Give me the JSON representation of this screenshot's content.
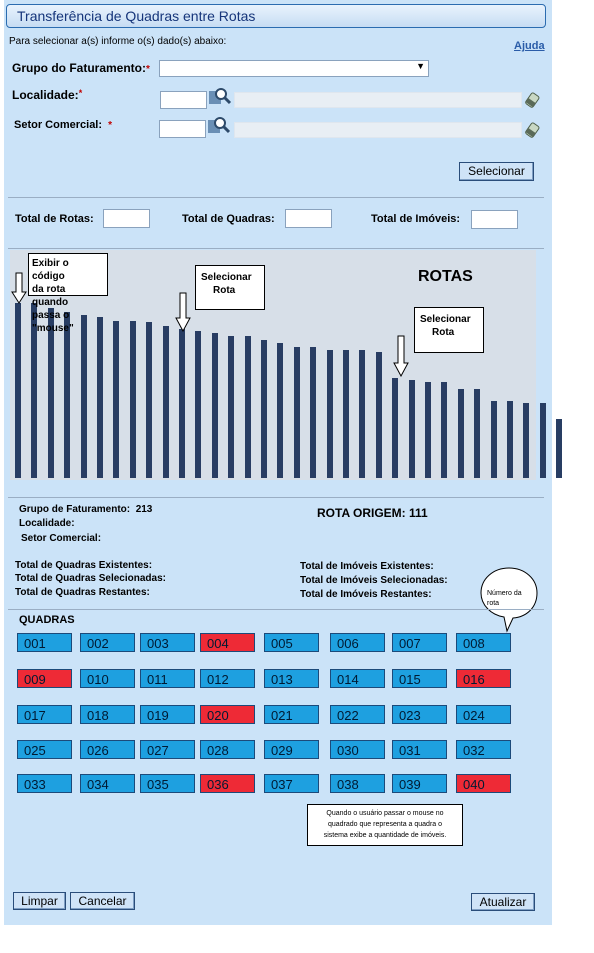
{
  "window": {
    "title": "Transferência de Quadras entre Rotas"
  },
  "header": {
    "instruction": "Para selecionar a(s) informe o(s) dado(s) abaixo:",
    "help_link": "Ajuda"
  },
  "form": {
    "grupo_label": "Grupo do Faturamento:",
    "grupo_required": "*",
    "grupo_value": "",
    "localidade_label": "Localidade:",
    "localidade_required": "*",
    "setor_label": "Setor Comercial:",
    "setor_required": "*",
    "selecionar_button": "Selecionar"
  },
  "totals": {
    "rotas_label": "Total de Rotas:",
    "quadras_label": "Total de Quadras:",
    "imoveis_label": "Total de Imóveis:"
  },
  "chart_data": {
    "type": "bar",
    "title": "ROTAS",
    "values": [
      100,
      100,
      97,
      95,
      93,
      92,
      90,
      90,
      89,
      87,
      85,
      84,
      83,
      81,
      81,
      79,
      77,
      75,
      75,
      73,
      73,
      73,
      72,
      57,
      56,
      55,
      55,
      51,
      51,
      44,
      44,
      43,
      43,
      34
    ],
    "ylim": [
      0,
      110
    ],
    "annotations": [
      {
        "text_lines": [
          "Exibir o código",
          "da rota quando",
          "passa o \"mouse\""
        ],
        "bar_index": 0
      },
      {
        "text_lines": [
          "Selecionar",
          "Rota"
        ],
        "bar_index": 10
      },
      {
        "text_lines": [
          "Selecionar",
          "Rota"
        ],
        "bar_index": 23
      }
    ]
  },
  "info": {
    "grupo_label": "Grupo de Faturamento:",
    "grupo_value": "213",
    "localidade_label": "Localidade:",
    "setor_label": "Setor Comercial:",
    "rota_origem": "ROTA ORIGEM: 111",
    "quadras_existentes": "Total de Quadras Existentes:",
    "quadras_selecionadas": "Total de Quadras Selecionadas:",
    "quadras_restantes": "Total de Quadras Restantes:",
    "imoveis_existentes": "Total de Imóveis Existentes:",
    "imoveis_selecionadas": "Total de Imóveis Selecionadas:",
    "imoveis_restantes": "Total de Imóveis Restantes:"
  },
  "quadras": {
    "label": "QUADRAS",
    "items": [
      {
        "code": "001",
        "state": "normal"
      },
      {
        "code": "002",
        "state": "normal"
      },
      {
        "code": "003",
        "state": "normal"
      },
      {
        "code": "004",
        "state": "red"
      },
      {
        "code": "005",
        "state": "normal"
      },
      {
        "code": "006",
        "state": "normal"
      },
      {
        "code": "007",
        "state": "normal"
      },
      {
        "code": "008",
        "state": "normal"
      },
      {
        "code": "009",
        "state": "red"
      },
      {
        "code": "010",
        "state": "normal"
      },
      {
        "code": "011",
        "state": "normal"
      },
      {
        "code": "012",
        "state": "normal"
      },
      {
        "code": "013",
        "state": "normal"
      },
      {
        "code": "014",
        "state": "normal"
      },
      {
        "code": "015",
        "state": "normal"
      },
      {
        "code": "016",
        "state": "red"
      },
      {
        "code": "017",
        "state": "normal"
      },
      {
        "code": "018",
        "state": "normal"
      },
      {
        "code": "019",
        "state": "normal"
      },
      {
        "code": "020",
        "state": "red"
      },
      {
        "code": "021",
        "state": "normal"
      },
      {
        "code": "022",
        "state": "normal"
      },
      {
        "code": "023",
        "state": "normal"
      },
      {
        "code": "024",
        "state": "normal"
      },
      {
        "code": "025",
        "state": "normal"
      },
      {
        "code": "026",
        "state": "normal"
      },
      {
        "code": "027",
        "state": "normal"
      },
      {
        "code": "028",
        "state": "normal"
      },
      {
        "code": "029",
        "state": "normal"
      },
      {
        "code": "030",
        "state": "normal"
      },
      {
        "code": "031",
        "state": "normal"
      },
      {
        "code": "032",
        "state": "normal"
      },
      {
        "code": "033",
        "state": "normal"
      },
      {
        "code": "034",
        "state": "normal"
      },
      {
        "code": "035",
        "state": "normal"
      },
      {
        "code": "036",
        "state": "red"
      },
      {
        "code": "037",
        "state": "normal"
      },
      {
        "code": "038",
        "state": "normal"
      },
      {
        "code": "039",
        "state": "normal"
      },
      {
        "code": "040",
        "state": "red"
      }
    ],
    "colors": {
      "normal": "#1ea0e0",
      "red": "#ee2a36"
    },
    "bubble_lines": [
      "Número da",
      "rota"
    ],
    "note_lines": [
      "Quando o usuário passar o mouse no",
      "quadrado que representa a quadra o",
      "sistema exibe a quantidade de imóveis."
    ]
  },
  "footer": {
    "limpar": "Limpar",
    "cancelar": "Cancelar",
    "atualizar": "Atualizar"
  }
}
